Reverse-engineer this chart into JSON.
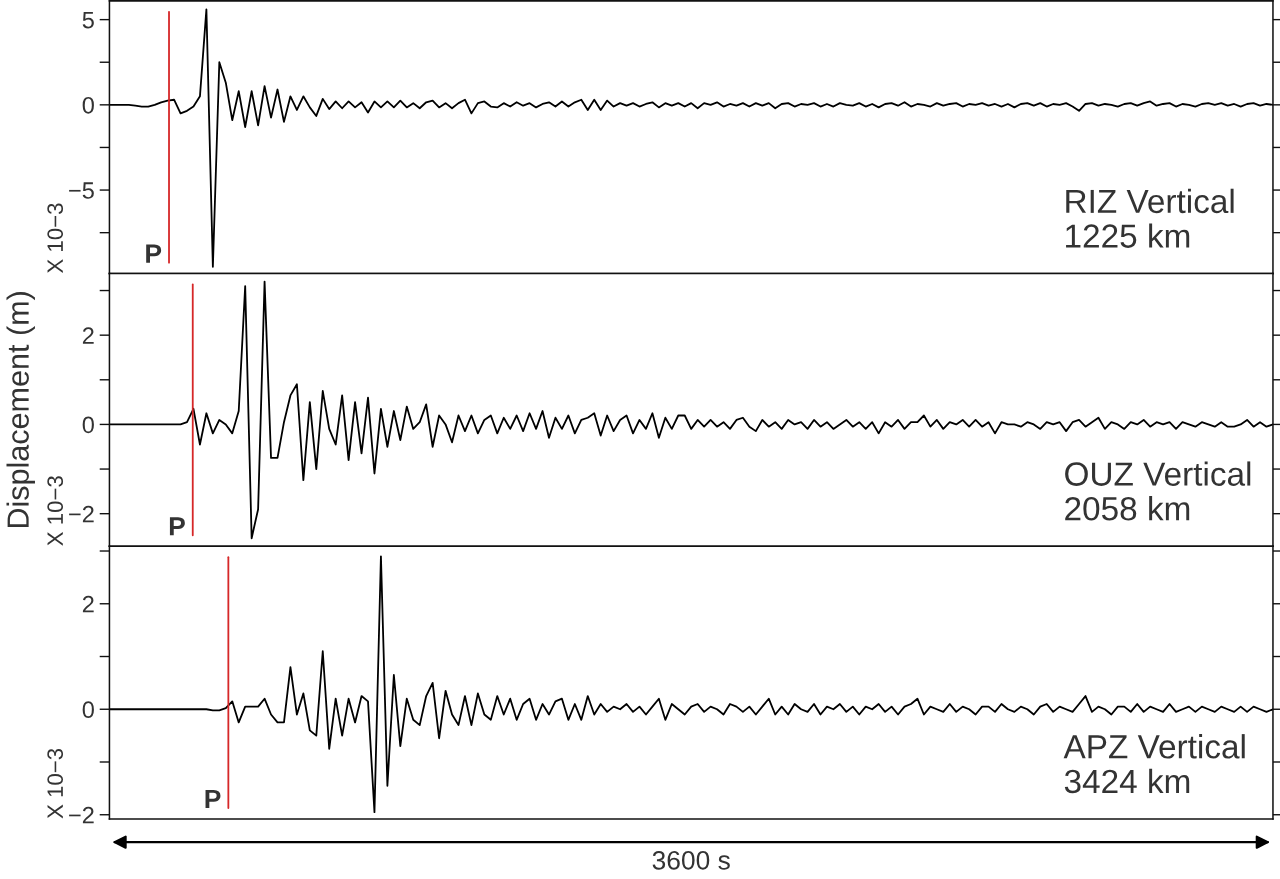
{
  "chart_data": [
    {
      "type": "line",
      "categories": [
        null,
        null,
        null,
        null,
        null,
        null,
        null,
        null,
        null,
        null,
        null,
        null,
        null,
        null,
        null,
        null,
        null,
        null,
        null,
        null,
        null,
        null,
        null,
        null,
        null,
        null,
        null,
        null,
        null,
        null,
        null,
        null,
        null,
        null,
        null,
        null,
        null,
        null,
        null,
        null,
        null,
        null,
        null,
        null,
        null,
        null,
        null,
        null,
        null,
        null,
        null,
        null,
        null,
        null,
        null,
        null,
        null,
        null,
        null,
        null,
        null,
        null,
        null,
        null,
        null,
        null,
        null,
        null,
        null,
        null,
        null,
        null,
        null,
        null,
        null,
        null,
        null,
        null,
        null,
        null,
        null,
        null,
        null,
        null,
        null,
        null,
        null,
        null,
        null,
        null,
        null,
        null,
        null,
        null,
        null,
        null,
        null,
        null,
        null,
        null,
        null,
        null,
        null,
        null,
        null,
        null,
        null,
        null,
        null,
        null,
        null,
        null,
        null,
        null,
        null,
        null,
        null,
        null,
        null,
        null,
        null,
        null,
        null,
        null,
        null,
        null,
        null,
        null,
        null,
        null,
        null,
        null,
        null,
        null,
        null,
        null,
        null,
        null,
        null,
        null,
        null,
        null,
        null,
        null,
        null,
        null,
        null,
        null,
        null,
        null,
        null,
        null,
        null,
        null,
        null,
        null,
        null,
        null,
        null,
        null,
        null,
        null,
        null,
        null,
        null,
        null,
        null,
        null,
        null,
        null,
        null,
        null,
        null,
        null,
        null,
        null,
        null,
        null,
        null,
        null,
        null
      ],
      "ylim": [
        -9.9,
        6.1
      ],
      "yticks": [
        5,
        {
          "value": 2.5,
          "label": null
        },
        0,
        {
          "value": -2.5,
          "label": null
        },
        {
          "value": -5,
          "label": "−5"
        },
        {
          "value": -7.5,
          "label": null
        }
      ],
      "tick_labels": "y",
      "annotations": [
        "X 10−3",
        "RIZ Vertical\n1225 km",
        "P"
      ],
      "series": [
        {
          "color": "#000000",
          "values": [
            0,
            0,
            0,
            0,
            -0.05,
            -0.1,
            -0.1,
            0,
            0.15,
            0.25,
            0.3,
            -0.5,
            -0.35,
            -0.1,
            0.5,
            5.6,
            -9.5,
            2.5,
            1.3,
            -0.9,
            0.8,
            -1.3,
            0.8,
            -1.2,
            1.1,
            -0.75,
            0.9,
            -1.0,
            0.5,
            -0.3,
            0.5,
            -0.15,
            -0.65,
            0.35,
            -0.25,
            0.2,
            -0.2,
            0.2,
            -0.15,
            0.15,
            -0.45,
            0.2,
            -0.15,
            0.2,
            -0.15,
            0.25,
            -0.15,
            0.1,
            -0.2,
            0.15,
            0.25,
            -0.15,
            0.1,
            -0.2,
            0.1,
            0.3,
            -0.5,
            0.1,
            0.2,
            -0.1,
            -0.15,
            0.1,
            -0.1,
            0.15,
            -0.05,
            0.1,
            -0.15,
            0.05,
            0.15,
            -0.1,
            0.2,
            -0.1,
            0.15,
            0.3,
            -0.3,
            0.3,
            -0.3,
            0.25,
            -0.1,
            0.1,
            -0.05,
            0.1,
            -0.1,
            0.05,
            0.15,
            -0.15,
            0.1,
            -0.05,
            0.1,
            -0.1,
            0.1,
            -0.2,
            0.1,
            0,
            0.15,
            -0.1,
            0.05,
            -0.05,
            0.1,
            -0.1,
            0.1,
            -0.05,
            0.1,
            -0.2,
            0.05,
            0.1,
            -0.1,
            0.05,
            0,
            0.1,
            -0.1,
            0.05,
            -0.1,
            0.1,
            0,
            -0.05,
            0.1,
            -0.1,
            0.05,
            -0.15,
            0.05,
            0.1,
            -0.05,
            0.15,
            -0.1,
            0.05,
            0,
            -0.1,
            0.1,
            -0.05,
            0.05,
            0.1,
            -0.1,
            0.05,
            0,
            0.1,
            -0.05,
            0.05,
            -0.1,
            0.05,
            -0.15,
            0.05,
            0.1,
            -0.05,
            0.1,
            -0.1,
            0.05,
            0,
            0.1,
            -0.1,
            -0.35,
            0.05,
            0.1,
            -0.05,
            0.05,
            0,
            -0.1,
            0.05,
            0.1,
            -0.05,
            0.1,
            0.2,
            -0.05,
            0.05,
            0.1,
            -0.1,
            0.05,
            0,
            -0.1,
            0.05,
            0.1,
            0,
            0.1,
            -0.05,
            0.05,
            -0.1,
            0.05,
            0.1,
            -0.05,
            0.05,
            0
          ]
        }
      ]
    },
    {
      "type": "line",
      "categories": [
        null,
        null,
        null,
        null,
        null,
        null,
        null,
        null,
        null,
        null,
        null,
        null,
        null,
        null,
        null,
        null,
        null,
        null,
        null,
        null,
        null,
        null,
        null,
        null,
        null,
        null,
        null,
        null,
        null,
        null,
        null,
        null,
        null,
        null,
        null,
        null,
        null,
        null,
        null,
        null,
        null,
        null,
        null,
        null,
        null,
        null,
        null,
        null,
        null,
        null,
        null,
        null,
        null,
        null,
        null,
        null,
        null,
        null,
        null,
        null,
        null,
        null,
        null,
        null,
        null,
        null,
        null,
        null,
        null,
        null,
        null,
        null,
        null,
        null,
        null,
        null,
        null,
        null,
        null,
        null,
        null,
        null,
        null,
        null,
        null,
        null,
        null,
        null,
        null,
        null,
        null,
        null,
        null,
        null,
        null,
        null,
        null,
        null,
        null,
        null,
        null,
        null,
        null,
        null,
        null,
        null,
        null,
        null,
        null,
        null,
        null,
        null,
        null,
        null,
        null,
        null,
        null,
        null,
        null,
        null,
        null,
        null,
        null,
        null,
        null,
        null,
        null,
        null,
        null,
        null,
        null,
        null,
        null,
        null,
        null,
        null,
        null,
        null,
        null,
        null,
        null,
        null,
        null,
        null,
        null,
        null,
        null,
        null,
        null,
        null,
        null,
        null,
        null,
        null,
        null,
        null,
        null,
        null,
        null,
        null,
        null,
        null,
        null,
        null,
        null,
        null,
        null,
        null,
        null,
        null,
        null,
        null,
        null,
        null,
        null,
        null,
        null,
        null,
        null,
        null,
        null
      ],
      "ylim": [
        -2.73,
        3.38
      ],
      "yticks": [
        {
          "value": 3,
          "label": null
        },
        2,
        {
          "value": 1,
          "label": null
        },
        0,
        {
          "value": -1,
          "label": null
        },
        {
          "value": -2,
          "label": "−2"
        }
      ],
      "tick_labels": "y",
      "ylabel": "Displacement (m)",
      "annotations": [
        "X 10−3",
        "OUZ Vertical\n2058 km",
        "P"
      ],
      "series": [
        {
          "color": "#000000",
          "values": [
            0,
            0,
            0,
            0,
            0,
            0,
            0,
            0,
            0,
            0,
            0,
            0,
            0.05,
            0.35,
            -0.45,
            0.25,
            -0.2,
            0.1,
            0,
            -0.2,
            0.3,
            3.1,
            -2.55,
            -1.9,
            3.2,
            -0.75,
            -0.75,
            0.05,
            0.65,
            0.9,
            -1.25,
            0.5,
            -1.0,
            0.75,
            -0.1,
            -0.45,
            0.65,
            -0.8,
            0.5,
            -0.65,
            0.6,
            -1.1,
            0.35,
            -0.5,
            0.3,
            -0.35,
            0.4,
            -0.1,
            0.05,
            0.45,
            -0.5,
            0.2,
            0,
            -0.4,
            0.2,
            -0.15,
            0.2,
            -0.2,
            0.1,
            0.2,
            -0.2,
            0.15,
            -0.1,
            0.2,
            -0.15,
            0.25,
            -0.1,
            0.3,
            -0.3,
            0.15,
            -0.1,
            0.2,
            -0.2,
            0.1,
            0.15,
            0.25,
            -0.25,
            0.2,
            -0.15,
            0.1,
            0.2,
            -0.2,
            0.1,
            -0.1,
            0.25,
            -0.3,
            0.15,
            -0.1,
            0.2,
            0.2,
            -0.1,
            0.1,
            -0.05,
            0.1,
            -0.05,
            0.05,
            -0.1,
            0.1,
            0.15,
            -0.05,
            -0.15,
            0.1,
            -0.05,
            0.05,
            -0.1,
            0.1,
            0,
            0.05,
            -0.1,
            0.1,
            -0.05,
            0.05,
            -0.1,
            0,
            0.1,
            -0.05,
            0.05,
            -0.1,
            0.05,
            -0.2,
            0.05,
            -0.05,
            0.1,
            -0.1,
            0.05,
            0.05,
            0.2,
            -0.05,
            0.1,
            -0.1,
            0.05,
            0,
            0.1,
            -0.05,
            0.1,
            -0.05,
            0.05,
            -0.2,
            0.05,
            0,
            0,
            -0.05,
            0.05,
            0,
            -0.1,
            0.05,
            0,
            0.05,
            -0.15,
            0.05,
            0.1,
            -0.05,
            0.05,
            0.15,
            -0.1,
            0.05,
            0,
            -0.1,
            0.05,
            0,
            0.1,
            -0.05,
            0.05,
            0,
            0.05,
            -0.1,
            0.05,
            0,
            -0.05,
            0.05,
            0,
            -0.05,
            0.05,
            -0.05,
            -0.05,
            0,
            0.1,
            -0.05,
            0.05,
            -0.05,
            0
          ]
        }
      ]
    },
    {
      "type": "line",
      "categories": [
        null,
        null,
        null,
        null,
        null,
        null,
        null,
        null,
        null,
        null,
        null,
        null,
        null,
        null,
        null,
        null,
        null,
        null,
        null,
        null,
        null,
        null,
        null,
        null,
        null,
        null,
        null,
        null,
        null,
        null,
        null,
        null,
        null,
        null,
        null,
        null,
        null,
        null,
        null,
        null,
        null,
        null,
        null,
        null,
        null,
        null,
        null,
        null,
        null,
        null,
        null,
        null,
        null,
        null,
        null,
        null,
        null,
        null,
        null,
        null,
        null,
        null,
        null,
        null,
        null,
        null,
        null,
        null,
        null,
        null,
        null,
        null,
        null,
        null,
        null,
        null,
        null,
        null,
        null,
        null,
        null,
        null,
        null,
        null,
        null,
        null,
        null,
        null,
        null,
        null,
        null,
        null,
        null,
        null,
        null,
        null,
        null,
        null,
        null,
        null,
        null,
        null,
        null,
        null,
        null,
        null,
        null,
        null,
        null,
        null,
        null,
        null,
        null,
        null,
        null,
        null,
        null,
        null,
        null,
        null,
        null,
        null,
        null,
        null,
        null,
        null,
        null,
        null,
        null,
        null,
        null,
        null,
        null,
        null,
        null,
        null,
        null,
        null,
        null,
        null,
        null,
        null,
        null,
        null,
        null,
        null,
        null,
        null,
        null,
        null,
        null,
        null,
        null,
        null,
        null,
        null,
        null,
        null,
        null,
        null,
        null,
        null,
        null,
        null,
        null,
        null,
        null,
        null,
        null,
        null,
        null,
        null,
        null,
        null,
        null,
        null,
        null,
        null,
        null,
        null,
        null
      ],
      "ylim": [
        -2.08,
        3.09
      ],
      "yticks": [
        {
          "value": 3,
          "label": null
        },
        2,
        {
          "value": 1,
          "label": null
        },
        0,
        {
          "value": -1,
          "label": null
        },
        {
          "value": -2,
          "label": "−2"
        }
      ],
      "tick_labels": "y",
      "annotations": [
        "X 10−3",
        "APZ Vertical\n3424 km",
        "P",
        "3600 s"
      ],
      "series": [
        {
          "color": "#000000",
          "values": [
            0,
            0,
            0,
            0,
            0,
            0,
            0,
            0,
            0,
            0,
            0,
            0,
            0,
            0,
            0,
            0,
            -0.02,
            -0.02,
            0.02,
            0.15,
            -0.25,
            0.05,
            0.05,
            0.05,
            0.2,
            -0.1,
            -0.25,
            -0.25,
            0.8,
            -0.1,
            0.3,
            -0.4,
            -0.5,
            1.1,
            -0.75,
            0.2,
            -0.5,
            0.2,
            -0.25,
            0.25,
            0.15,
            -1.95,
            2.9,
            -1.45,
            0.65,
            -0.7,
            0.2,
            -0.2,
            -0.3,
            0.25,
            0.5,
            -0.55,
            0.35,
            -0.1,
            -0.3,
            0.25,
            -0.3,
            0.3,
            -0.1,
            -0.2,
            0.25,
            -0.1,
            0.2,
            -0.2,
            0.1,
            0.2,
            -0.2,
            0.1,
            -0.1,
            0.15,
            0.2,
            -0.2,
            0.1,
            -0.2,
            0.25,
            -0.1,
            0.1,
            -0.05,
            0.05,
            0,
            0.1,
            -0.05,
            0.05,
            -0.1,
            0.05,
            0.2,
            -0.2,
            0.1,
            0,
            -0.1,
            0.05,
            0.1,
            -0.05,
            0.05,
            0,
            -0.1,
            0.1,
            0.05,
            -0.05,
            0.05,
            -0.1,
            0.05,
            0.2,
            -0.1,
            0.05,
            -0.1,
            0.1,
            0,
            -0.05,
            0.1,
            -0.1,
            0.05,
            0,
            0.1,
            -0.05,
            0.05,
            -0.1,
            0.05,
            0,
            0.1,
            -0.05,
            0.05,
            -0.1,
            0.05,
            0.1,
            0.2,
            -0.1,
            0.05,
            0,
            -0.05,
            0.1,
            -0.05,
            0.05,
            0,
            -0.1,
            0.05,
            0.05,
            -0.05,
            0.1,
            0,
            -0.05,
            0.05,
            0,
            -0.1,
            0.05,
            0.1,
            -0.05,
            0.05,
            0,
            -0.05,
            0.1,
            0.25,
            -0.05,
            0.05,
            0,
            -0.1,
            0.05,
            0.05,
            -0.05,
            0.1,
            -0.05,
            0.05,
            0,
            -0.05,
            0.1,
            -0.05,
            0,
            0.05,
            -0.05,
            0.05,
            0,
            -0.05,
            0.05,
            0,
            -0.05,
            0.05,
            -0.05,
            0.05,
            0,
            -0.05,
            0
          ]
        }
      ]
    }
  ]
}
